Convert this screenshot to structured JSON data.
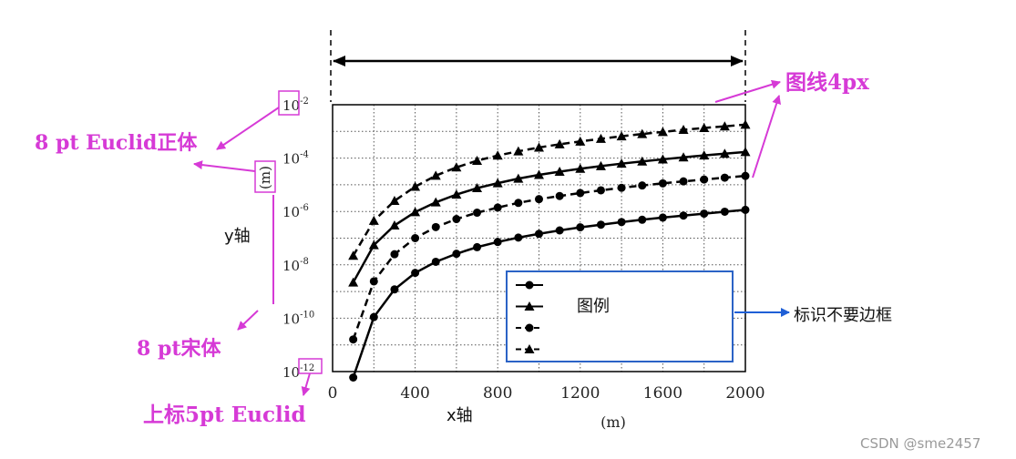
{
  "colors": {
    "annotation": "#d63ad6",
    "legend_border": "#2b63c6",
    "arrow_blue": "#1f5fd6",
    "series": "#000000",
    "grid": "#555555"
  },
  "annotations": {
    "font_8pt_euclid": "8 pt Euclid正体",
    "line_4px": "图线4px",
    "font_8pt_song": "8 pt宋体",
    "superscript_5pt": "上标5pt Euclid",
    "legend_no_border": "标识不要边框",
    "legend_label": "图例",
    "y_axis_cn": "y轴",
    "x_axis_cn": "x轴"
  },
  "watermark": "CSDN @sme2457",
  "chart_data": {
    "type": "line",
    "title": "",
    "xlabel": "(m)",
    "ylabel": "(m)",
    "xlim": [
      0,
      2000
    ],
    "ylim_log10": [
      -12,
      -2
    ],
    "y_scale": "log",
    "grid": true,
    "x_ticks": [
      "0",
      "400",
      "800",
      "1200",
      "1600",
      "2000"
    ],
    "y_ticks": [
      {
        "base": "10",
        "exp": "-2"
      },
      {
        "base": "10",
        "exp": "-4"
      },
      {
        "base": "10",
        "exp": "-6"
      },
      {
        "base": "10",
        "exp": "-8"
      },
      {
        "base": "10",
        "exp": "-10"
      },
      {
        "base": "10",
        "exp": "-12"
      }
    ],
    "x": [
      100,
      200,
      300,
      400,
      500,
      600,
      700,
      800,
      900,
      1000,
      1100,
      1200,
      1300,
      1400,
      1500,
      1600,
      1700,
      1800,
      1900,
      2000
    ],
    "series": [
      {
        "marker": "triangle",
        "line": "dashed",
        "values": [
          2.2e-08,
          4.5e-07,
          2.5e-06,
          8.5e-06,
          2.2e-05,
          4.5e-05,
          8e-05,
          0.000125,
          0.00018,
          0.00025,
          0.00033,
          0.00042,
          0.00053,
          0.00066,
          0.0008,
          0.00096,
          0.00115,
          0.00135,
          0.00155,
          0.0018
        ]
      },
      {
        "marker": "triangle",
        "line": "solid",
        "values": [
          2.2e-09,
          5.5e-08,
          3e-07,
          9.5e-07,
          2.2e-06,
          4.3e-06,
          7.5e-06,
          1.15e-05,
          1.7e-05,
          2.35e-05,
          3.1e-05,
          4e-05,
          5e-05,
          6.2e-05,
          7.5e-05,
          9e-05,
          0.000107,
          0.000126,
          0.000147,
          0.00017
        ]
      },
      {
        "marker": "circle",
        "line": "dashed",
        "values": [
          1.6e-11,
          2.4e-09,
          2.5e-08,
          1e-07,
          2.6e-07,
          5.2e-07,
          9e-07,
          1.4e-06,
          2.1e-06,
          2.9e-06,
          3.8e-06,
          4.9e-06,
          6.2e-06,
          7.7e-06,
          9.4e-06,
          1.13e-05,
          1.34e-05,
          1.58e-05,
          1.85e-05,
          2.15e-05
        ]
      },
      {
        "marker": "circle",
        "line": "solid",
        "values": [
          6e-13,
          1.1e-10,
          1.2e-09,
          5e-09,
          1.3e-08,
          2.6e-08,
          4.6e-08,
          7.2e-08,
          1.05e-07,
          1.45e-07,
          1.95e-07,
          2.55e-07,
          3.2e-07,
          4e-07,
          4.9e-07,
          5.9e-07,
          7e-07,
          8.3e-07,
          9.8e-07,
          1.15e-06
        ]
      }
    ],
    "legend": {
      "position": "bottom-right"
    }
  }
}
